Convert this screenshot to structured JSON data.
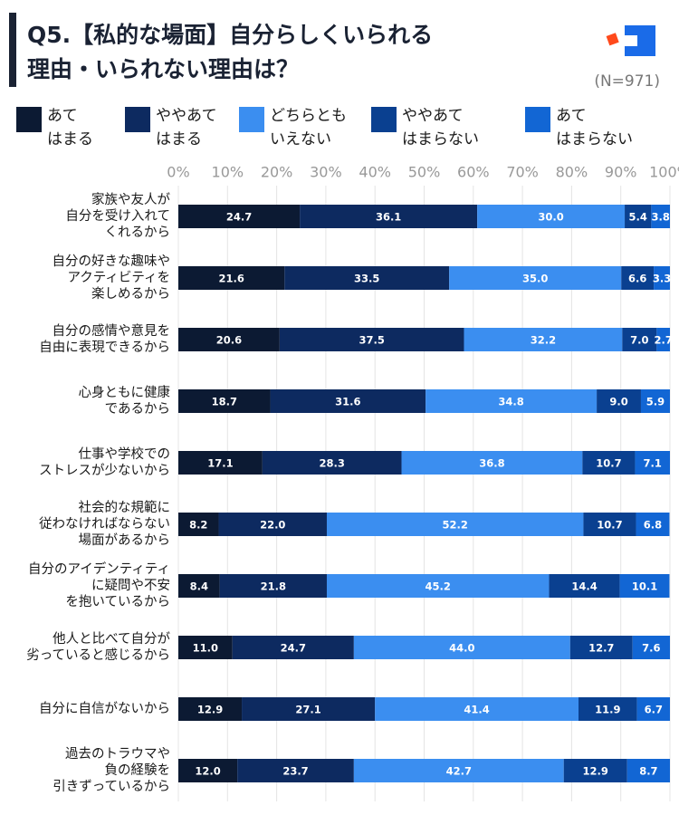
{
  "chart_data": {
    "type": "stacked-barh",
    "title": "Q5.【私的な場面】自分らしくいられる\n理由・いられない理由は？",
    "annotation": "(N=971)",
    "categories": [
      "家族や友人が\n自分を受け入れて\nくれるから",
      "自分の好きな趣味や\nアクティビティを\n楽しめるから",
      "自分の感情や意見を\n自由に表現できるから",
      "心身ともに健康\nであるから",
      "仕事や学校での\nストレスが少ないから",
      "社会的な規範に\n従わなければならない\n場面があるから",
      "自分のアイデンティティ\nに疑問や不安\nを抱いているから",
      "他人と比べて自分が\n劣っていると感じるから",
      "自分に自信がないから",
      "過去のトラウマや\n負の経験を\n引きずっているから"
    ],
    "series": [
      {
        "name": "あて\nはまる",
        "color": "#0c1a33",
        "values": [
          24.7,
          21.6,
          20.6,
          18.7,
          17.1,
          8.2,
          8.4,
          11.0,
          12.9,
          12.0
        ],
        "value_labels": [
          "24.7",
          "21.6",
          "20.6",
          "18.7",
          "17.1",
          "8.2",
          "8.4",
          "11.0",
          "12.9",
          "12.0"
        ]
      },
      {
        "name": "ややあて\nはまる",
        "color": "#0d2a60",
        "values": [
          36.1,
          33.5,
          37.5,
          31.6,
          28.3,
          22.0,
          21.8,
          24.7,
          27.1,
          23.7
        ],
        "value_labels": [
          "36.1",
          "33.5",
          "37.5",
          "31.6",
          "28.3",
          "22.0",
          "21.8",
          "24.7",
          "27.1",
          "23.7"
        ]
      },
      {
        "name": "どちらとも\nいえない",
        "color": "#3b8ef0",
        "values": [
          30.0,
          35.0,
          32.2,
          34.8,
          36.8,
          52.2,
          45.2,
          44.0,
          41.4,
          42.7
        ],
        "value_labels": [
          "30.0",
          "35.0",
          "32.2",
          "34.8",
          "36.8",
          "52.2",
          "45.2",
          "44.0",
          "41.4",
          "42.7"
        ]
      },
      {
        "name": "ややあて\nはまらない",
        "color": "#0a4090",
        "values": [
          5.4,
          6.6,
          7.0,
          9.0,
          10.7,
          10.7,
          14.4,
          12.7,
          11.9,
          12.9
        ],
        "value_labels": [
          "5.4",
          "6.6",
          "7.0",
          "9.0",
          "10.7",
          "10.7",
          "14.4",
          "12.7",
          "11.9",
          "12.9"
        ]
      },
      {
        "name": "あて\nはまらない",
        "color": "#1266d4",
        "values": [
          3.8,
          3.3,
          2.7,
          5.9,
          7.1,
          6.8,
          10.1,
          7.6,
          6.7,
          8.7
        ],
        "value_labels": [
          "3.8",
          "3.3",
          "2.7",
          "5.9",
          "7.1",
          "6.8",
          "10.1",
          "7.6",
          "6.7",
          "8.7"
        ]
      }
    ],
    "xlim": [
      0,
      100
    ],
    "xticks": [
      {
        "value": 0,
        "label": "0%"
      },
      {
        "value": 10,
        "label": "10%"
      },
      {
        "value": 20,
        "label": "20%"
      },
      {
        "value": 30,
        "label": "30%"
      },
      {
        "value": 40,
        "label": "40%"
      },
      {
        "value": 50,
        "label": "50%"
      },
      {
        "value": 60,
        "label": "60%"
      },
      {
        "value": 70,
        "label": "70%"
      },
      {
        "value": 80,
        "label": "80%"
      },
      {
        "value": 90,
        "label": "90%"
      },
      {
        "value": 100,
        "label": "100%"
      }
    ],
    "grid": true
  }
}
